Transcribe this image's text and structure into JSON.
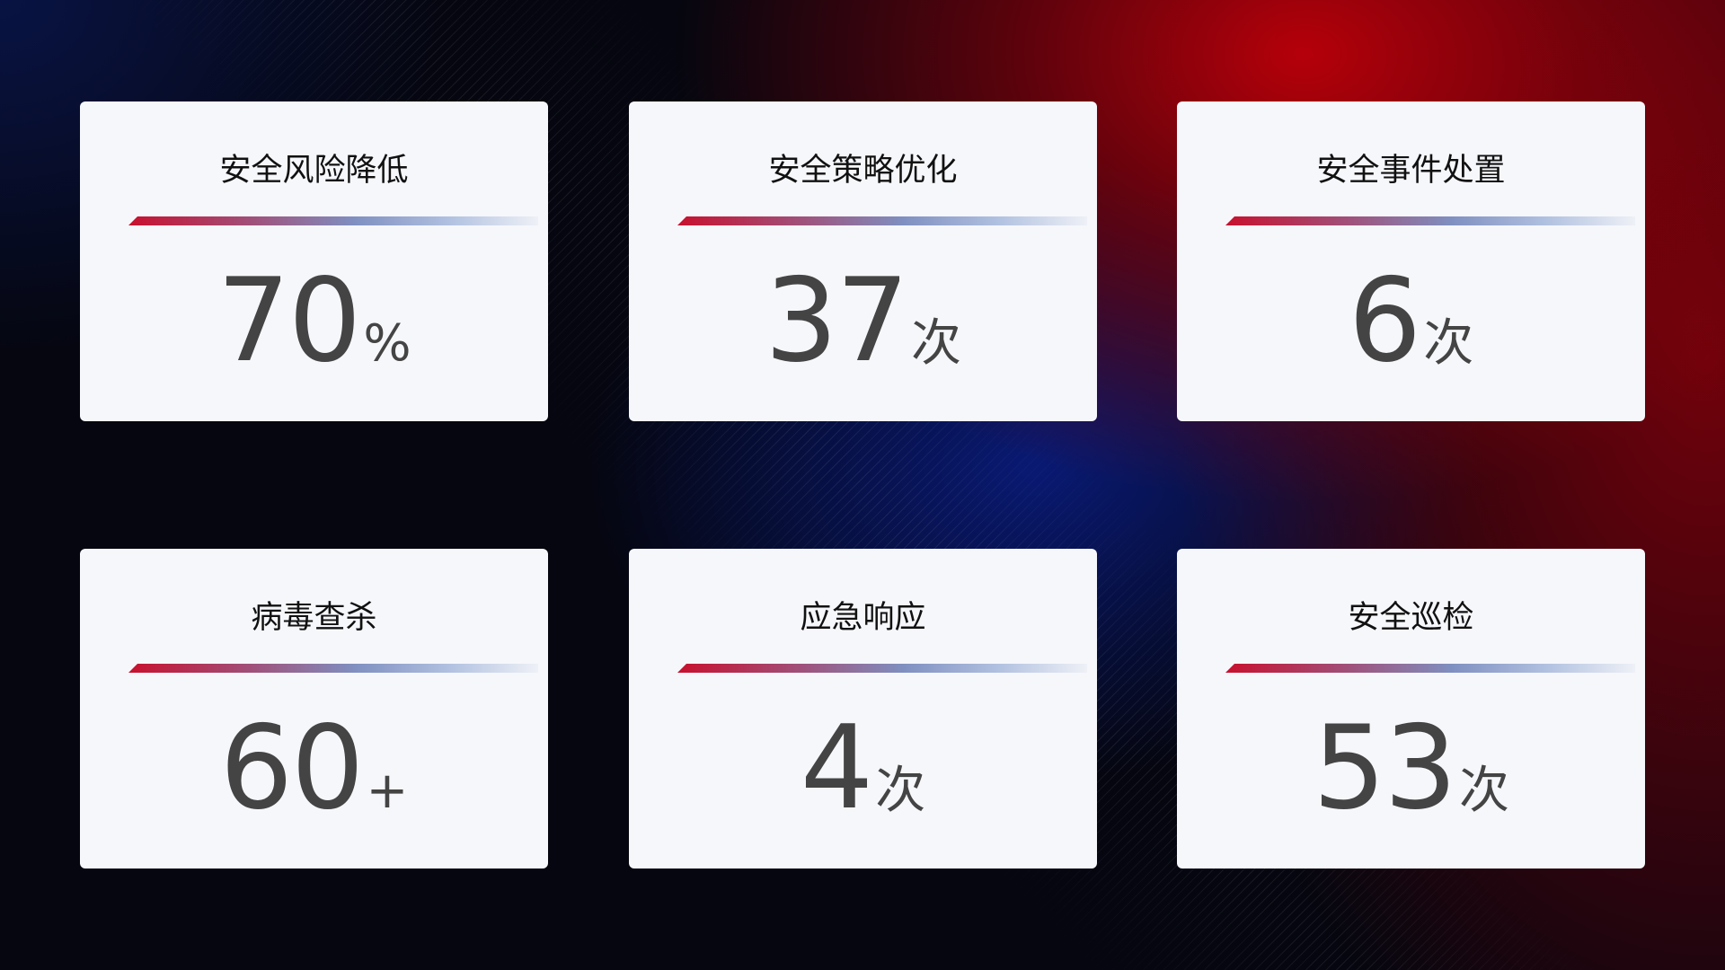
{
  "cards": [
    {
      "title": "安全风险降低",
      "value": "70",
      "unit": "%"
    },
    {
      "title": "安全策略优化",
      "value": "37",
      "unit": "次"
    },
    {
      "title": "安全事件处置",
      "value": "6",
      "unit": "次"
    },
    {
      "title": "病毒查杀",
      "value": "60",
      "unit": "+"
    },
    {
      "title": "应急响应",
      "value": "4",
      "unit": "次"
    },
    {
      "title": "安全巡检",
      "value": "53",
      "unit": "次"
    }
  ],
  "colors": {
    "accent_red": "#c8102e",
    "accent_blue": "#7f8fc0",
    "card_bg": "#f6f7fb",
    "number": "#444444"
  }
}
